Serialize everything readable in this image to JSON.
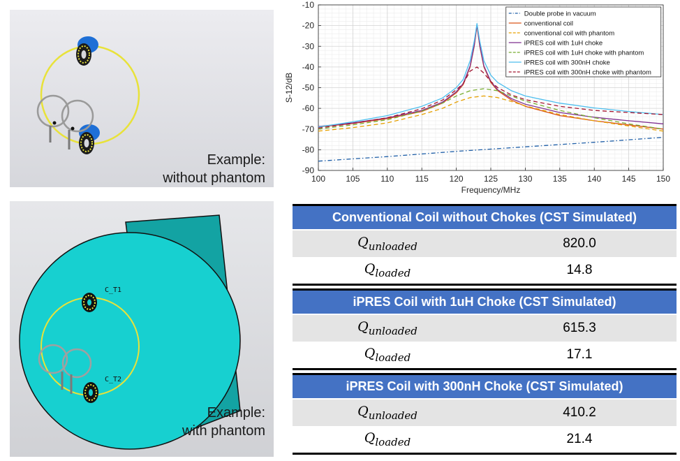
{
  "images": {
    "without_phantom": {
      "caption_line1": "Example:",
      "caption_line2": "without phantom"
    },
    "with_phantom": {
      "caption_line1": "Example:",
      "caption_line2": "with phantom",
      "label_t1": "C_T1",
      "label_t2": "C_T2"
    }
  },
  "chart_data": {
    "type": "line",
    "xlabel": "Frequency/MHz",
    "ylabel": "S-12/dB",
    "xlim": [
      100,
      150
    ],
    "ylim": [
      -90,
      -10
    ],
    "xticks": [
      100,
      105,
      110,
      115,
      120,
      125,
      130,
      135,
      140,
      145,
      150
    ],
    "yticks": [
      -10,
      -20,
      -30,
      -40,
      -50,
      -60,
      -70,
      -80,
      -90
    ],
    "grid": true,
    "legend_position": "top-right",
    "series": [
      {
        "name": "Double probe in vacuum",
        "color": "#1f5fa8",
        "dash": "dashdot",
        "points": [
          [
            100,
            -85.5
          ],
          [
            110,
            -83.3
          ],
          [
            120,
            -80.8
          ],
          [
            130,
            -78.6
          ],
          [
            140,
            -76.4
          ],
          [
            150,
            -74
          ]
        ]
      },
      {
        "name": "conventional coil",
        "color": "#d95319",
        "dash": "solid",
        "points": [
          [
            100,
            -69
          ],
          [
            105,
            -67.3
          ],
          [
            110,
            -65
          ],
          [
            115,
            -61.5
          ],
          [
            118,
            -57.5
          ],
          [
            120,
            -52.5
          ],
          [
            121,
            -48.5
          ],
          [
            122,
            -40
          ],
          [
            122.6,
            -30
          ],
          [
            123,
            -20
          ],
          [
            123.4,
            -30
          ],
          [
            124,
            -40
          ],
          [
            125,
            -47.5
          ],
          [
            126,
            -51.5
          ],
          [
            128,
            -56
          ],
          [
            130,
            -59
          ],
          [
            135,
            -63.5
          ],
          [
            140,
            -66
          ],
          [
            145,
            -68
          ],
          [
            150,
            -70
          ]
        ]
      },
      {
        "name": "conventional coil with phantom",
        "color": "#e6a000",
        "dash": "dash",
        "points": [
          [
            100,
            -71
          ],
          [
            105,
            -69.3
          ],
          [
            110,
            -67
          ],
          [
            115,
            -63
          ],
          [
            118,
            -60
          ],
          [
            120,
            -57
          ],
          [
            122,
            -54.8
          ],
          [
            124,
            -54
          ],
          [
            126,
            -54.8
          ],
          [
            128,
            -56.7
          ],
          [
            130,
            -58.8
          ],
          [
            135,
            -63
          ],
          [
            140,
            -66
          ],
          [
            145,
            -68.5
          ],
          [
            150,
            -71
          ]
        ]
      },
      {
        "name": "iPRES coil with 1uH choke",
        "color": "#7e2f8e",
        "dash": "solid",
        "points": [
          [
            100,
            -68.8
          ],
          [
            105,
            -67
          ],
          [
            110,
            -64.6
          ],
          [
            115,
            -61
          ],
          [
            118,
            -57
          ],
          [
            120,
            -52
          ],
          [
            121,
            -48
          ],
          [
            122,
            -39.5
          ],
          [
            122.6,
            -29.5
          ],
          [
            123,
            -19.5
          ],
          [
            123.4,
            -29.5
          ],
          [
            124,
            -39.5
          ],
          [
            125,
            -47
          ],
          [
            126,
            -51
          ],
          [
            128,
            -55.3
          ],
          [
            130,
            -58
          ],
          [
            135,
            -62
          ],
          [
            140,
            -64.3
          ],
          [
            145,
            -66
          ],
          [
            150,
            -67.5
          ]
        ]
      },
      {
        "name": "iPRES coil with 1uH choke with phantom",
        "color": "#77ac30",
        "dash": "dash",
        "points": [
          [
            100,
            -70
          ],
          [
            105,
            -68
          ],
          [
            110,
            -65.5
          ],
          [
            115,
            -61.3
          ],
          [
            118,
            -57.5
          ],
          [
            120,
            -54
          ],
          [
            122,
            -51.5
          ],
          [
            124,
            -50.5
          ],
          [
            126,
            -51.5
          ],
          [
            128,
            -54
          ],
          [
            130,
            -56.5
          ],
          [
            135,
            -61
          ],
          [
            140,
            -64.5
          ],
          [
            145,
            -67.5
          ],
          [
            150,
            -70
          ]
        ]
      },
      {
        "name": "iPRES coil with 300nH choke",
        "color": "#4dbeee",
        "dash": "solid",
        "points": [
          [
            100,
            -69
          ],
          [
            105,
            -66.5
          ],
          [
            110,
            -63.5
          ],
          [
            115,
            -59
          ],
          [
            118,
            -55
          ],
          [
            120,
            -50
          ],
          [
            121,
            -46
          ],
          [
            122,
            -37
          ],
          [
            122.6,
            -27.5
          ],
          [
            123,
            -19
          ],
          [
            123.4,
            -27.5
          ],
          [
            124,
            -37
          ],
          [
            125,
            -44
          ],
          [
            126,
            -47.5
          ],
          [
            128,
            -51.5
          ],
          [
            130,
            -54
          ],
          [
            135,
            -57.5
          ],
          [
            140,
            -59.8
          ],
          [
            145,
            -61.5
          ],
          [
            150,
            -63
          ]
        ]
      },
      {
        "name": "iPRES coil with 300nH choke with phantom",
        "color": "#a2142f",
        "dash": "dash",
        "points": [
          [
            100,
            -69.5
          ],
          [
            105,
            -67.3
          ],
          [
            110,
            -64.5
          ],
          [
            115,
            -60.2
          ],
          [
            118,
            -56
          ],
          [
            120,
            -51
          ],
          [
            121,
            -48
          ],
          [
            122,
            -42
          ],
          [
            123,
            -40
          ],
          [
            124,
            -43
          ],
          [
            125,
            -47
          ],
          [
            126,
            -50
          ],
          [
            128,
            -53.5
          ],
          [
            130,
            -55.8
          ],
          [
            135,
            -59
          ],
          [
            140,
            -61
          ],
          [
            145,
            -62
          ],
          [
            150,
            -63
          ]
        ]
      }
    ]
  },
  "tables": [
    {
      "header": "Conventional Coil without Chokes (CST Simulated)",
      "unloaded": "820.0",
      "loaded": "14.8"
    },
    {
      "header": "iPRES Coil with 1uH Choke (CST Simulated)",
      "unloaded": "615.3",
      "loaded": "17.1"
    },
    {
      "header": "iPRES Coil with 300nH Choke (CST Simulated)",
      "unloaded": "410.2",
      "loaded": "21.4"
    }
  ],
  "q_labels": {
    "q": "Q",
    "unloaded": "unloaded",
    "loaded": "loaded"
  }
}
